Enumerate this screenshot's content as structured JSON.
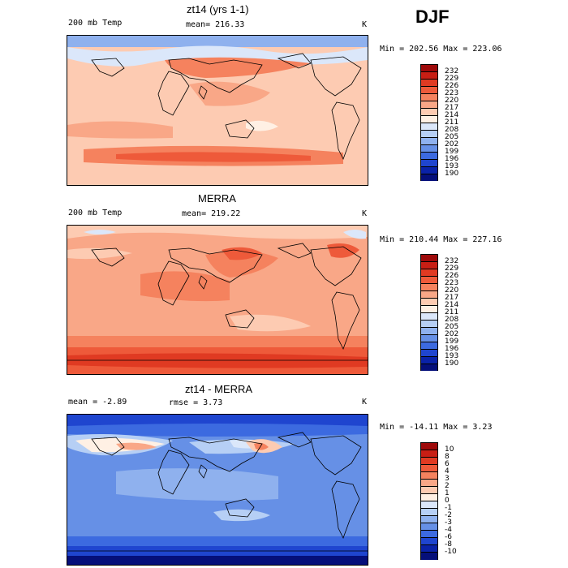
{
  "season": "DJF",
  "panels": [
    {
      "title": "zt14 (yrs 1-1)",
      "left_label": "200 mb Temp",
      "center_label": "mean= 216.33",
      "units": "K",
      "minmax": "Min = 202.56  Max = 223.06",
      "levels": [
        "232",
        "229",
        "226",
        "223",
        "220",
        "217",
        "214",
        "211",
        "208",
        "205",
        "202",
        "199",
        "196",
        "193",
        "190"
      ],
      "colors": [
        "#9e0a0a",
        "#c81e14",
        "#e03a22",
        "#ee5a3a",
        "#f5825e",
        "#f9a787",
        "#fdcbb2",
        "#fff0e4",
        "#dbe7fa",
        "#b6cff5",
        "#8fb1ee",
        "#6690e6",
        "#3c6ae0",
        "#1f45cf",
        "#0a22a8",
        "#050f7a"
      ]
    },
    {
      "title": "MERRA",
      "left_label": "200 mb Temp",
      "center_label": "mean= 219.22",
      "units": "K",
      "minmax": "Min = 210.44  Max = 227.16",
      "levels": [
        "232",
        "229",
        "226",
        "223",
        "220",
        "217",
        "214",
        "211",
        "208",
        "205",
        "202",
        "199",
        "196",
        "193",
        "190"
      ],
      "colors": [
        "#9e0a0a",
        "#c81e14",
        "#e03a22",
        "#ee5a3a",
        "#f5825e",
        "#f9a787",
        "#fdcbb2",
        "#fff0e4",
        "#dbe7fa",
        "#b6cff5",
        "#8fb1ee",
        "#6690e6",
        "#3c6ae0",
        "#1f45cf",
        "#0a22a8",
        "#050f7a"
      ]
    },
    {
      "title": "zt14 - MERRA",
      "left_label": "mean =   -2.89",
      "center_label": "rmse =    3.73",
      "units": "K",
      "minmax": "Min = -14.11  Max =    3.23",
      "levels": [
        "10",
        "8",
        "6",
        "4",
        "3",
        "2",
        "1",
        "0",
        "-1",
        "-2",
        "-3",
        "-4",
        "-6",
        "-8",
        "-10"
      ],
      "colors": [
        "#9e0a0a",
        "#c81e14",
        "#e03a22",
        "#ee5a3a",
        "#f5825e",
        "#f9a787",
        "#fdcbb2",
        "#fff0e4",
        "#dbe7fa",
        "#b6cff5",
        "#8fb1ee",
        "#6690e6",
        "#3c6ae0",
        "#1f45cf",
        "#0a22a8",
        "#050f7a"
      ]
    }
  ]
}
